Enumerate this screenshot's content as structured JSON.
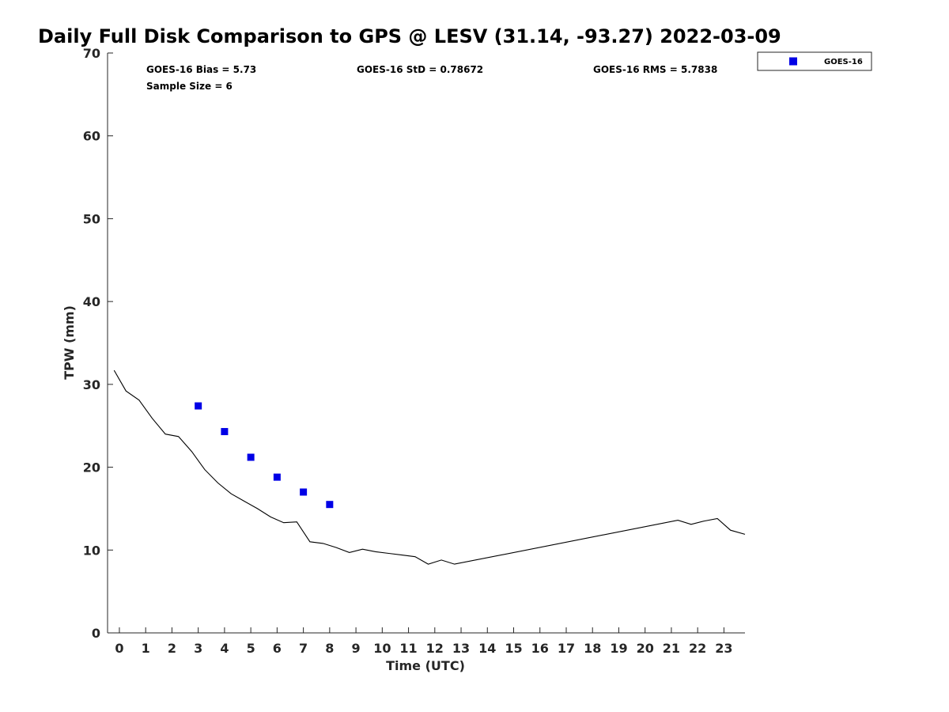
{
  "chart_data": {
    "type": "scatter",
    "title": "Daily Full Disk Comparison to GPS @ LESV (31.14, -93.27) 2022-03-09",
    "xlabel": "Time (UTC)",
    "ylabel": "TPW (mm)",
    "xlim": [
      -0.45,
      23.8
    ],
    "ylim": [
      0,
      70
    ],
    "x_ticks": [
      0,
      1,
      2,
      3,
      4,
      5,
      6,
      7,
      8,
      9,
      10,
      11,
      12,
      13,
      14,
      15,
      16,
      17,
      18,
      19,
      20,
      21,
      22,
      23
    ],
    "y_ticks": [
      0,
      10,
      20,
      30,
      40,
      50,
      60,
      70
    ],
    "grid": false,
    "legend_position": "top-right",
    "stats": {
      "bias": "GOES-16 Bias = 5.73",
      "sample_size": "Sample Size = 6",
      "std": "GOES-16 StD = 0.78672",
      "rms": "GOES-16 RMS = 5.7838"
    },
    "series": [
      {
        "name": "",
        "kind": "line",
        "color": "#000000",
        "x": [
          -0.2,
          0.25,
          0.75,
          1.25,
          1.75,
          2.25,
          2.75,
          3.25,
          3.75,
          4.25,
          4.75,
          5.25,
          5.75,
          6.25,
          6.75,
          7.25,
          7.75,
          8.25,
          8.75,
          9.25,
          9.75,
          10.25,
          10.75,
          11.25,
          11.75,
          12.25,
          12.75,
          21.25,
          21.75,
          22.25,
          22.75,
          23.25,
          23.8
        ],
        "y": [
          31.7,
          29.2,
          28.1,
          25.9,
          24.0,
          23.7,
          21.9,
          19.7,
          18.1,
          16.8,
          15.9,
          15.0,
          14.0,
          13.3,
          13.4,
          11.0,
          10.8,
          10.3,
          9.7,
          10.1,
          9.8,
          9.6,
          9.4,
          9.2,
          8.3,
          8.8,
          8.3,
          13.6,
          13.1,
          13.5,
          13.8,
          12.4,
          11.9
        ]
      },
      {
        "name": "GOES-16",
        "kind": "scatter",
        "color": "#0000e6",
        "marker": "square",
        "x": [
          3,
          4,
          5,
          6,
          7,
          8
        ],
        "y": [
          27.4,
          24.3,
          21.2,
          18.8,
          17.0,
          15.5
        ]
      }
    ]
  }
}
